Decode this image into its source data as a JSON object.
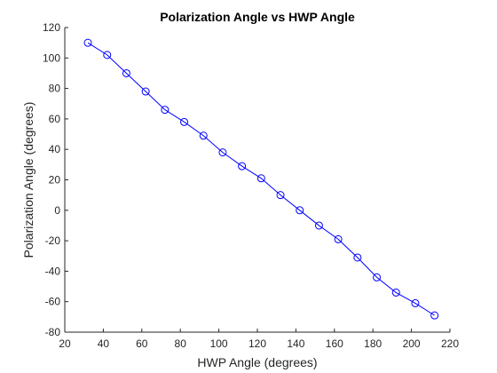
{
  "chart_data": {
    "type": "line",
    "title": "Polarization Angle vs HWP Angle",
    "xlabel": "HWP Angle (degrees)",
    "ylabel": "Polarization Angle (degrees)",
    "xlim": [
      20,
      220
    ],
    "ylim": [
      -80,
      120
    ],
    "xticks": [
      20,
      40,
      60,
      80,
      100,
      120,
      140,
      160,
      180,
      200,
      220
    ],
    "yticks": [
      -80,
      -60,
      -40,
      -20,
      0,
      20,
      40,
      60,
      80,
      100,
      120
    ],
    "grid": false,
    "marker": "circle",
    "color": "#0000ff",
    "series": [
      {
        "x": [
          32,
          42,
          52,
          62,
          72,
          82,
          92,
          102,
          112,
          122,
          132,
          142,
          152,
          162,
          172,
          182,
          192,
          202,
          212
        ],
        "y": [
          110,
          102,
          90,
          78,
          66,
          58,
          49,
          38,
          29,
          21,
          10,
          0,
          -10,
          -19,
          -31,
          -44,
          -54,
          -61,
          -69
        ]
      }
    ]
  }
}
